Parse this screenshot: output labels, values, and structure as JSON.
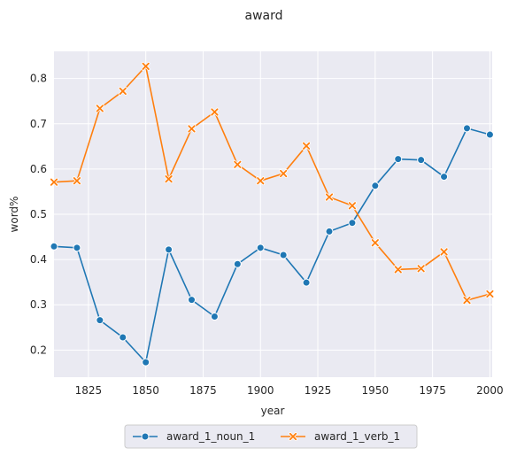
{
  "chart_data": {
    "type": "line",
    "title": "award",
    "xlabel": "year",
    "ylabel": "word%",
    "xlim": [
      1810,
      2001
    ],
    "ylim": [
      0.14,
      0.86
    ],
    "xticks": [
      1825,
      1850,
      1875,
      1900,
      1925,
      1950,
      1975,
      2000
    ],
    "xtick_labels": [
      "1825",
      "1850",
      "1875",
      "1900",
      "1925",
      "1950",
      "1975",
      "2000"
    ],
    "yticks": [
      0.2,
      0.3,
      0.4,
      0.5,
      0.6,
      0.7,
      0.8
    ],
    "ytick_labels": [
      "0.2",
      "0.3",
      "0.4",
      "0.5",
      "0.6",
      "0.7",
      "0.8"
    ],
    "x": [
      1810,
      1820,
      1830,
      1840,
      1850,
      1860,
      1870,
      1880,
      1890,
      1900,
      1910,
      1920,
      1930,
      1940,
      1950,
      1960,
      1970,
      1980,
      1990,
      2000
    ],
    "series": [
      {
        "name": "award_1_noun_1",
        "marker": "circle",
        "color": "#1f77b4",
        "values": [
          0.429,
          0.426,
          0.266,
          0.228,
          0.173,
          0.422,
          0.311,
          0.274,
          0.39,
          0.426,
          0.41,
          0.349,
          0.462,
          0.481,
          0.563,
          0.622,
          0.62,
          0.583,
          0.69,
          0.676
        ]
      },
      {
        "name": "award_1_verb_1",
        "marker": "x",
        "color": "#ff7f0e",
        "values": [
          0.571,
          0.574,
          0.734,
          0.772,
          0.827,
          0.578,
          0.689,
          0.726,
          0.61,
          0.574,
          0.59,
          0.651,
          0.538,
          0.519,
          0.437,
          0.378,
          0.38,
          0.417,
          0.31,
          0.324
        ]
      }
    ],
    "grid": true,
    "legend_position": "bottom-center, below plot",
    "background": "#eaeaf2"
  }
}
